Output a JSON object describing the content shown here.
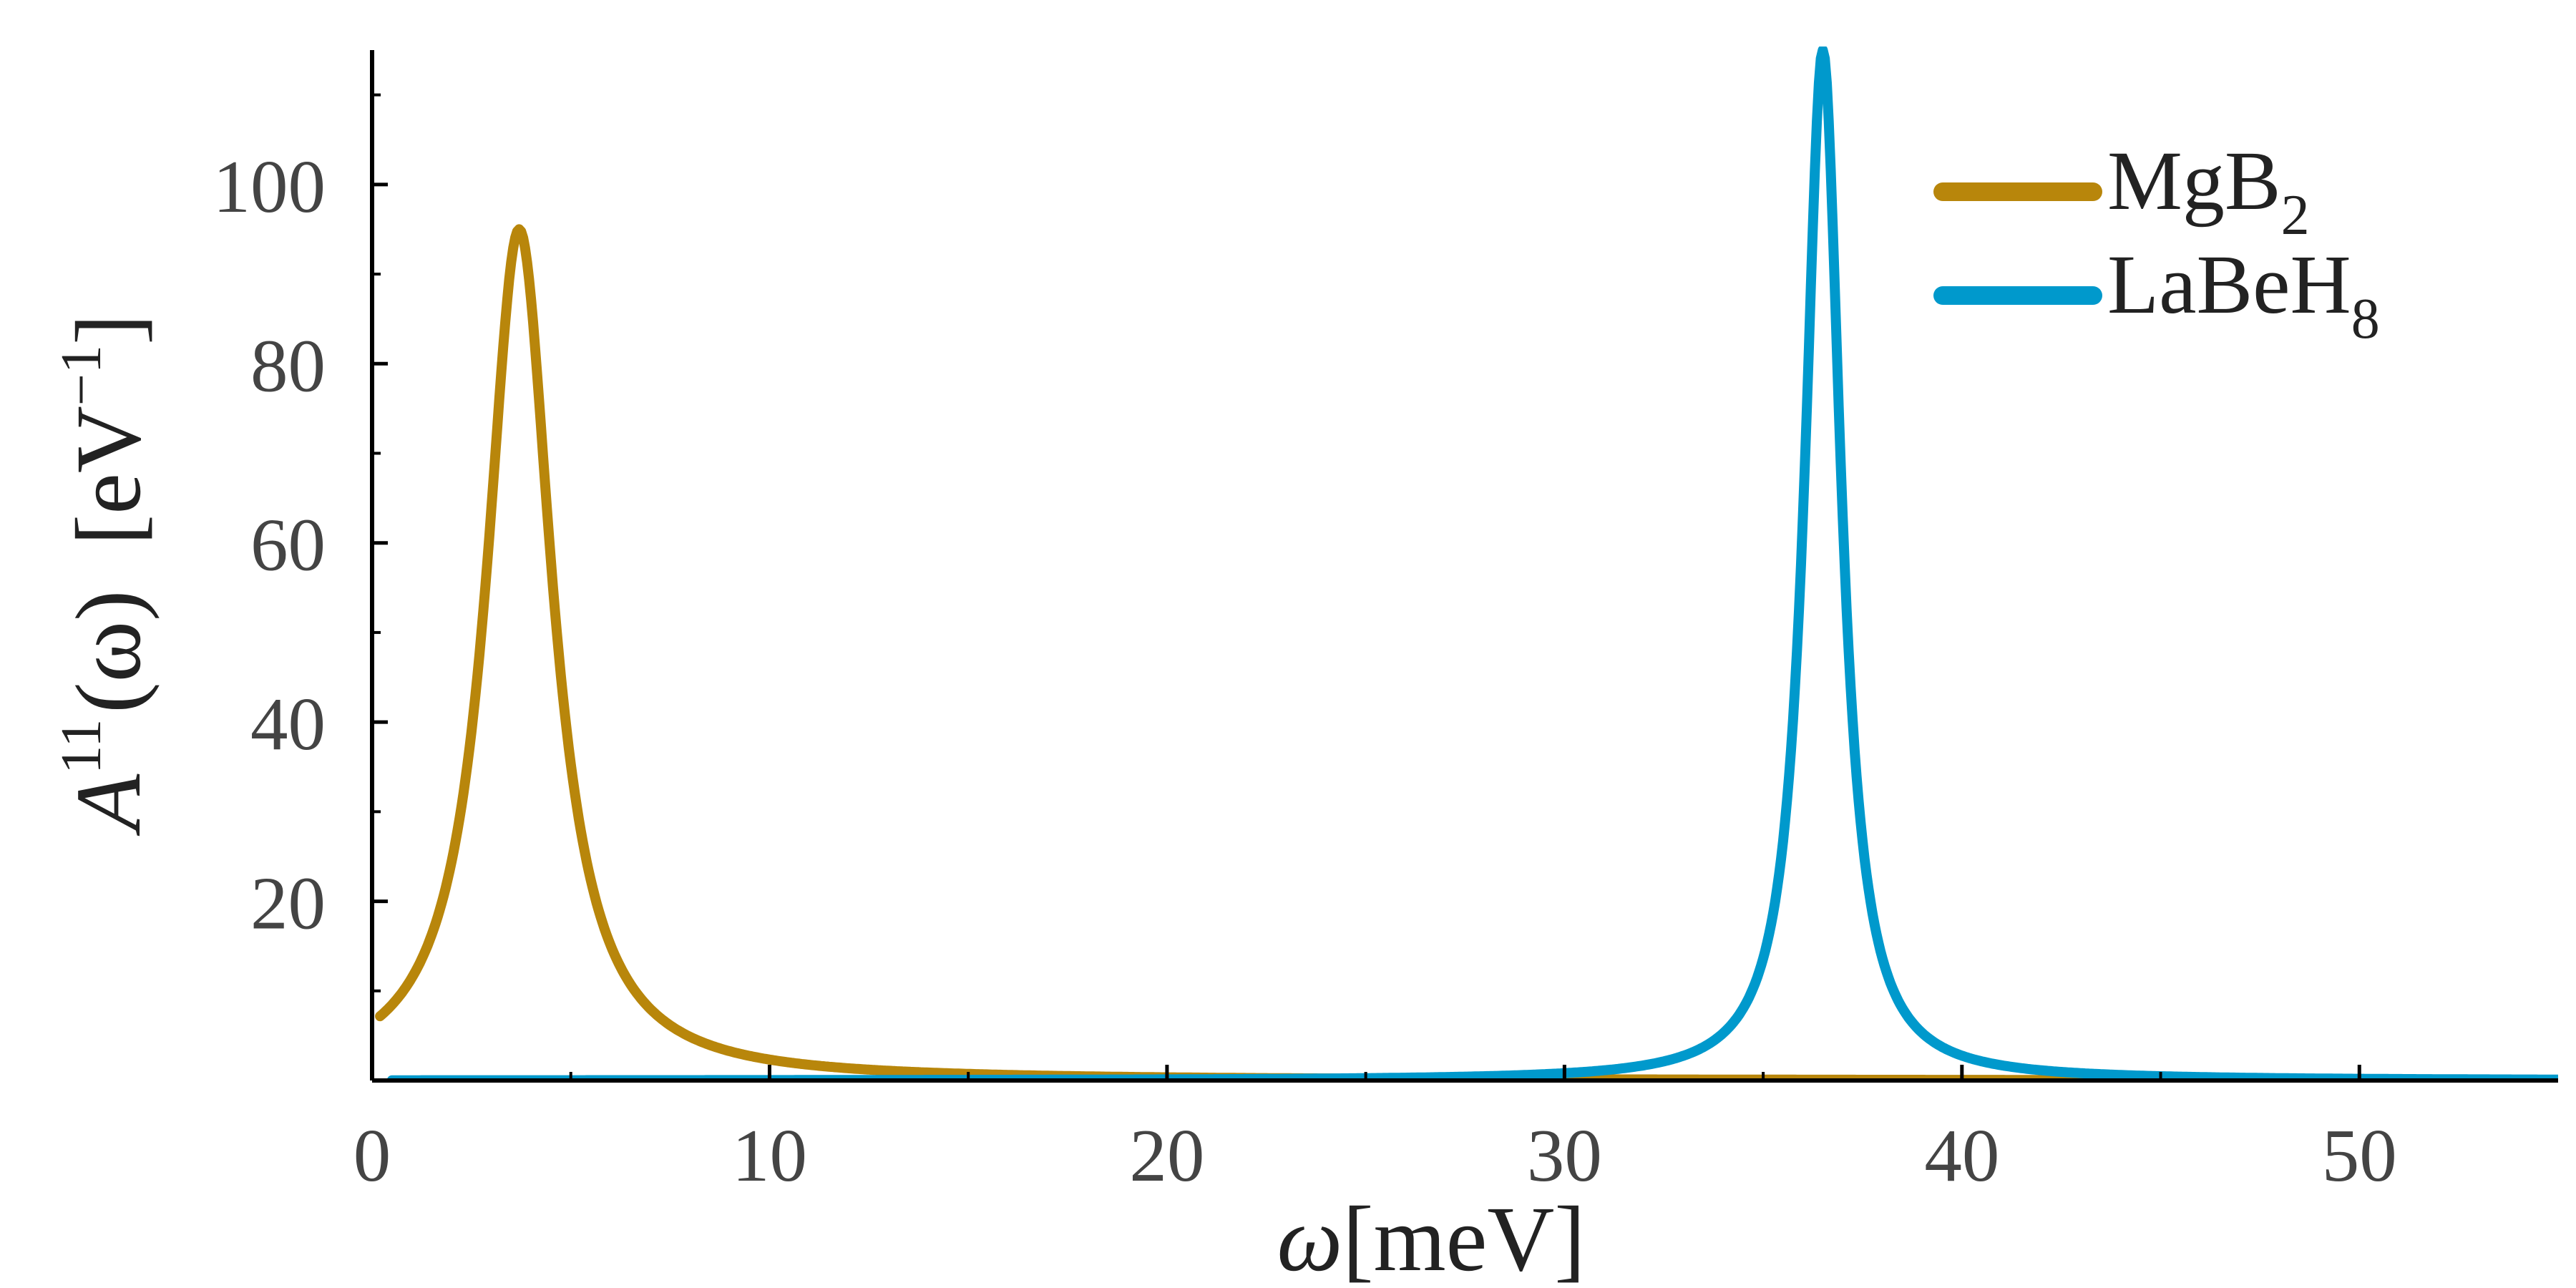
{
  "chart_data": {
    "type": "line",
    "xlabel_symbol": "ω",
    "xlabel_unit": "[meV]",
    "ylabel_main": "A",
    "ylabel_sup": "11",
    "ylabel_arg": "(ω)",
    "ylabel_unit_open": "[eV",
    "ylabel_unit_sup": "−1",
    "ylabel_unit_close": "]",
    "xlim": [
      0,
      55
    ],
    "ylim": [
      0,
      115
    ],
    "xticks": [
      0,
      10,
      20,
      30,
      40,
      50
    ],
    "yticks": [
      20,
      40,
      60,
      80,
      100
    ],
    "grid": false,
    "legend_position": "top-right",
    "series": [
      {
        "name": "MgB",
        "name_sub": "2",
        "color": "#b8860b",
        "peak_x": 3.7,
        "peak_y": 95,
        "half_width": 1.0,
        "x_start": 0.2
      },
      {
        "name": "LaBeH",
        "name_sub": "8",
        "color": "#0099cc",
        "peak_x": 36.5,
        "peak_y": 115,
        "half_width": 0.55,
        "x_start": 0.5
      }
    ]
  }
}
